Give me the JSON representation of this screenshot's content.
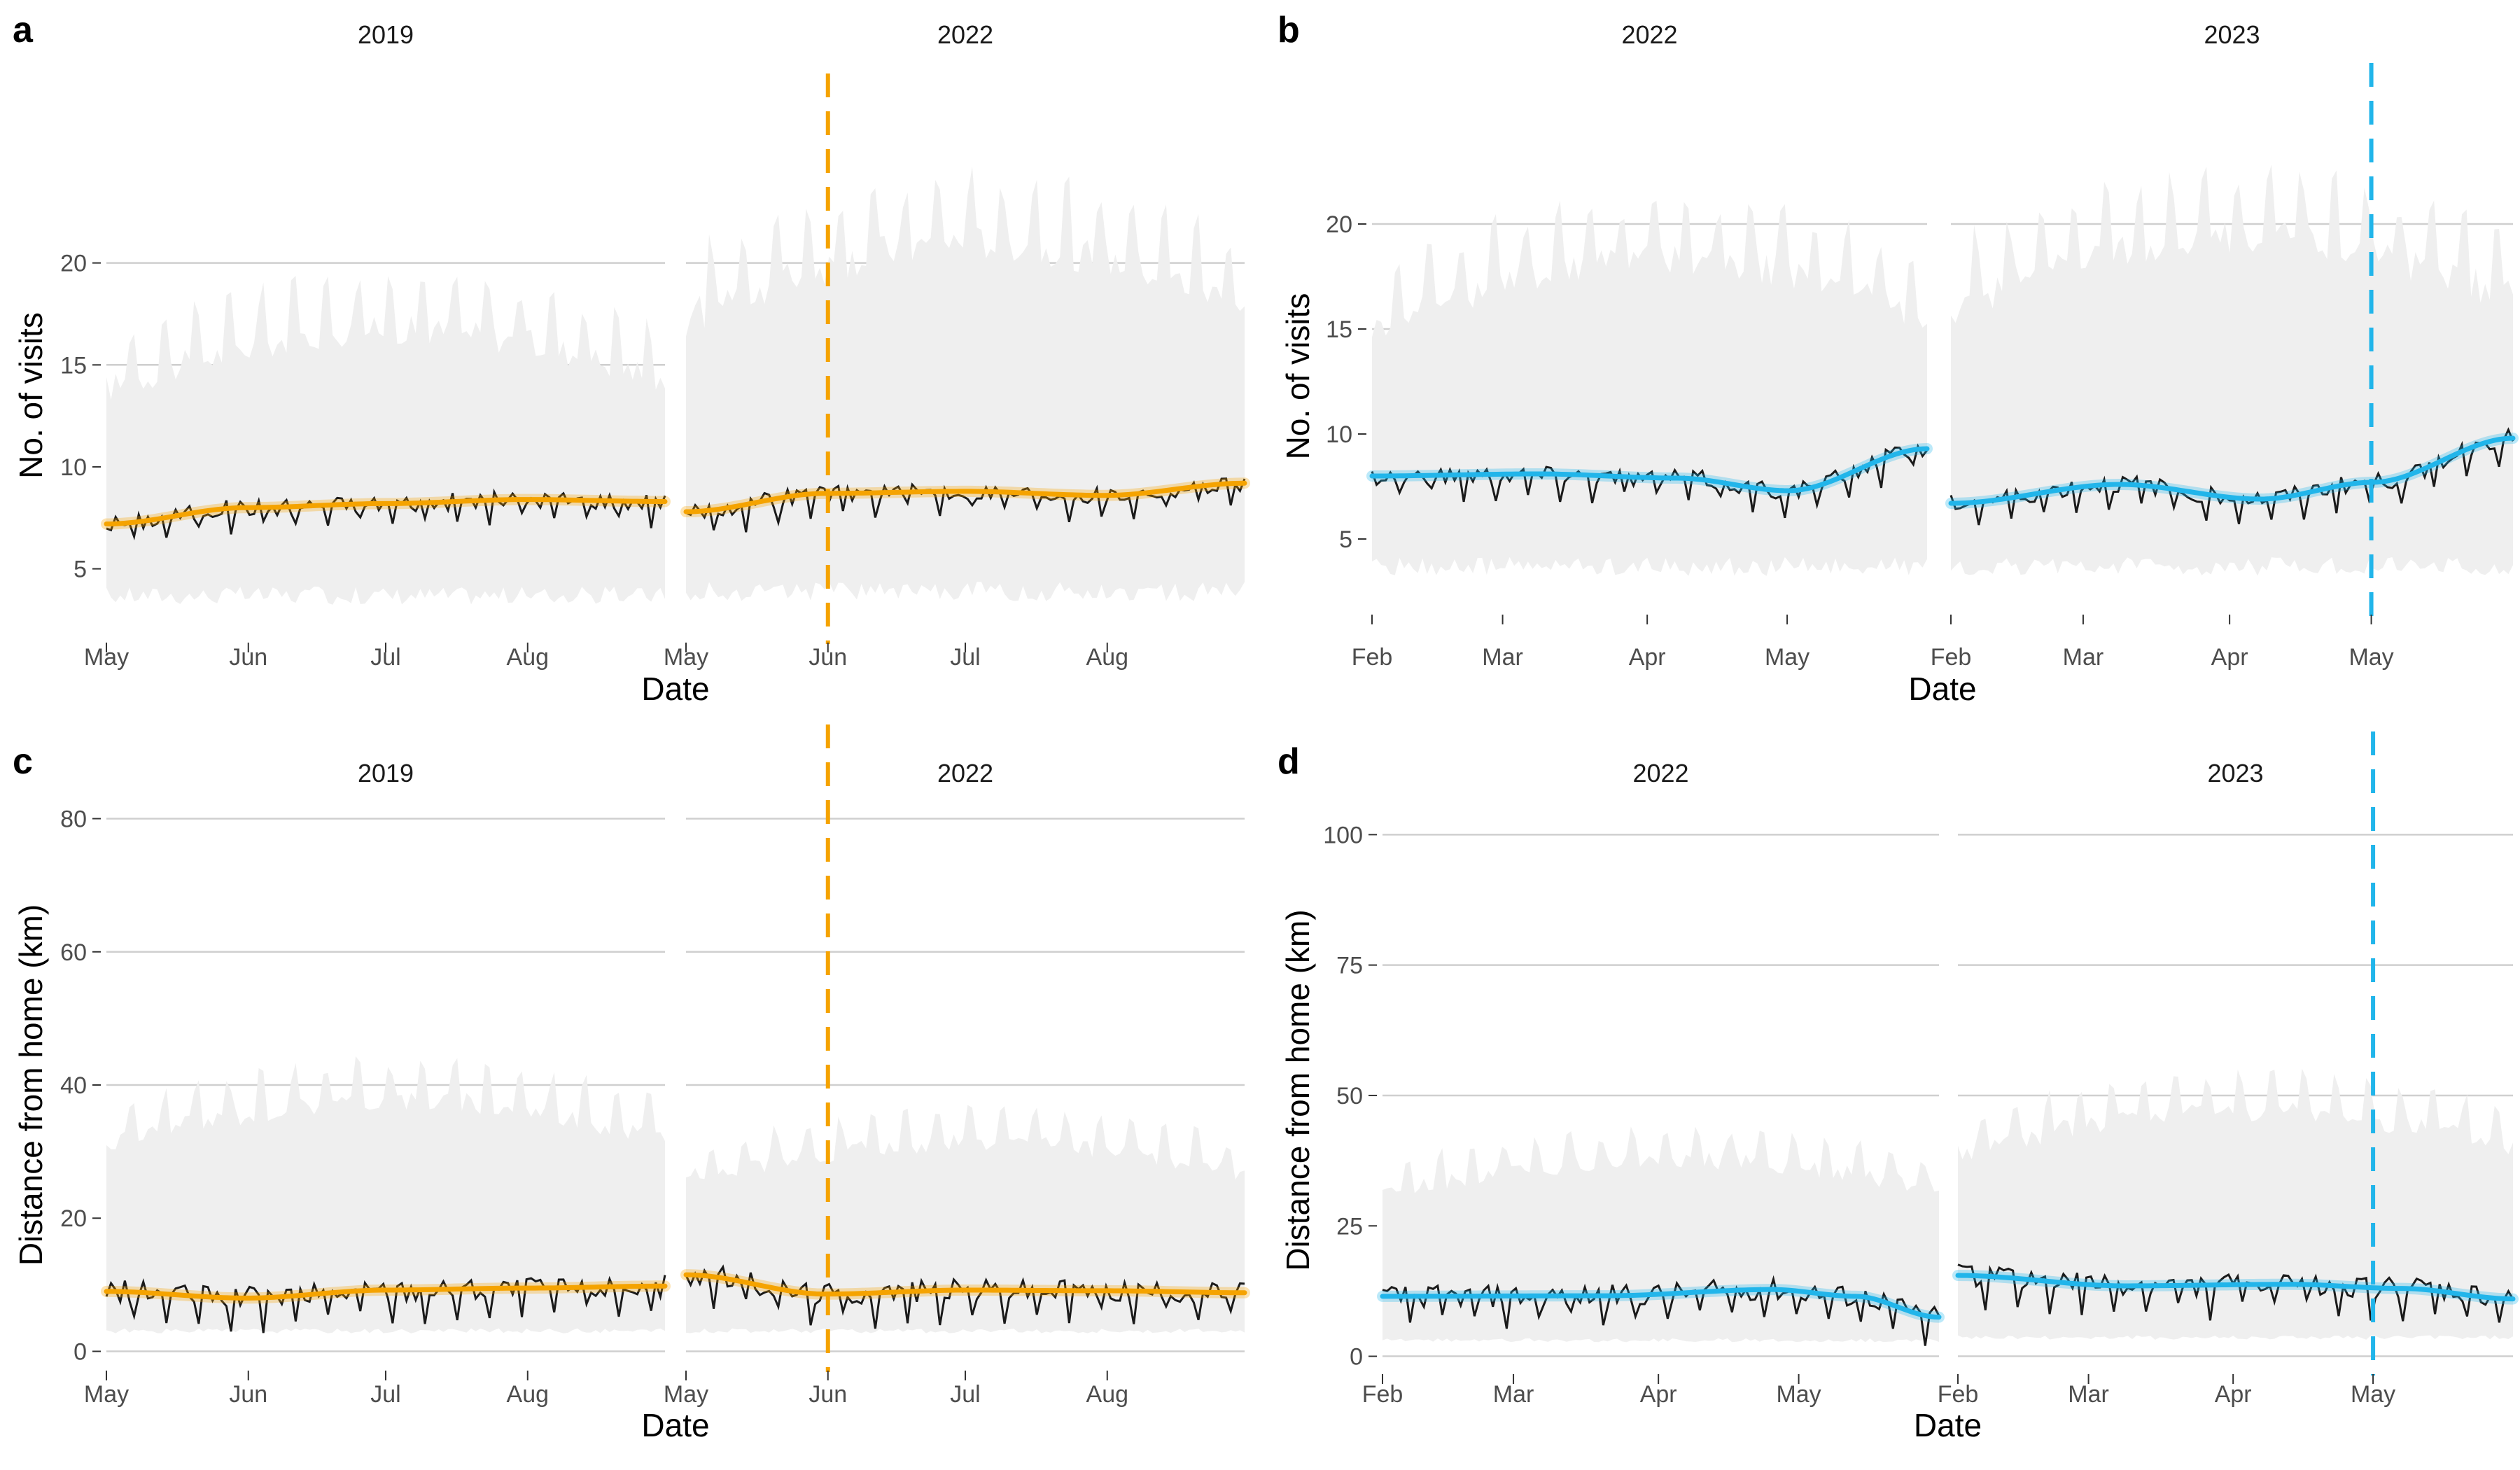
{
  "colors": {
    "fy_orange": "#f5a300",
    "fy_blue": "#21b5ea",
    "band": "#efefef",
    "grid": "#cfcfcf",
    "observed": "#1a1a1a",
    "tick_text": "#4d4d4d"
  },
  "chart_data": [
    {
      "panel": "a",
      "type": "line",
      "ylabel": "No. of visits",
      "xlabel": "Date",
      "y_ticks": [
        5,
        10,
        15,
        20
      ],
      "ylim": [
        2.0,
        25.0
      ],
      "highlight_color": "#f5a300",
      "facets": [
        {
          "strip": "2019",
          "x_start": "2019-05-01",
          "x_end": "2019-08-31",
          "x_ticks": [
            {
              "date": "2019-05-01",
              "label": "May"
            },
            {
              "date": "2019-06-01",
              "label": "Jun"
            },
            {
              "date": "2019-07-01",
              "label": "Jul"
            },
            {
              "date": "2019-08-01",
              "label": "Aug"
            }
          ],
          "vline": null,
          "smooth": [
            [
              0,
              7.2
            ],
            [
              0.25,
              8.0
            ],
            [
              0.5,
              8.2
            ],
            [
              0.75,
              8.4
            ],
            [
              1,
              8.3
            ]
          ],
          "observed_base": 8.1,
          "band_low": 3.6,
          "band_high": 16.0
        },
        {
          "strip": "2022",
          "x_start": "2022-05-01",
          "x_end": "2022-08-31",
          "x_ticks": [
            {
              "date": "2022-05-01",
              "label": "May"
            },
            {
              "date": "2022-06-01",
              "label": "Jun"
            },
            {
              "date": "2022-07-01",
              "label": "Jul"
            },
            {
              "date": "2022-08-01",
              "label": "Aug"
            }
          ],
          "vline": "2022-06-01",
          "smooth": [
            [
              0,
              7.8
            ],
            [
              0.25,
              8.7
            ],
            [
              0.5,
              8.8
            ],
            [
              0.75,
              8.6
            ],
            [
              1,
              9.2
            ]
          ],
          "observed_base": 8.6,
          "band_low": 3.8,
          "band_high": 20.0
        }
      ]
    },
    {
      "panel": "b",
      "type": "line",
      "ylabel": "No. of visits",
      "xlabel": "Date",
      "y_ticks": [
        5,
        10,
        15,
        20
      ],
      "ylim": [
        2.0,
        23.5
      ],
      "highlight_color": "#21b5ea",
      "facets": [
        {
          "strip": "2022",
          "x_start": "2022-02-01",
          "x_end": "2022-05-31",
          "x_ticks": [
            {
              "date": "2022-02-01",
              "label": "Feb"
            },
            {
              "date": "2022-03-01",
              "label": "Mar"
            },
            {
              "date": "2022-04-01",
              "label": "Apr"
            },
            {
              "date": "2022-05-01",
              "label": "May"
            }
          ],
          "vline": null,
          "smooth": [
            [
              0,
              8.0
            ],
            [
              0.3,
              8.1
            ],
            [
              0.55,
              7.9
            ],
            [
              0.75,
              7.3
            ],
            [
              1,
              9.3
            ]
          ],
          "observed_base": 7.9,
          "band_low": 3.6,
          "band_high": 17.5
        },
        {
          "strip": "2023",
          "x_start": "2023-02-01",
          "x_end": "2023-05-31",
          "x_ticks": [
            {
              "date": "2023-02-01",
              "label": "Feb"
            },
            {
              "date": "2023-03-01",
              "label": "Mar"
            },
            {
              "date": "2023-04-01",
              "label": "Apr"
            },
            {
              "date": "2023-05-01",
              "label": "May"
            }
          ],
          "vline": "2023-05-01",
          "smooth": [
            [
              0,
              6.7
            ],
            [
              0.3,
              7.6
            ],
            [
              0.55,
              6.9
            ],
            [
              0.75,
              7.7
            ],
            [
              1,
              9.8
            ]
          ],
          "observed_base": 7.4,
          "band_low": 3.6,
          "band_high": 18.5
        }
      ]
    },
    {
      "panel": "c",
      "type": "line",
      "ylabel": "Distance from home (km)",
      "xlabel": "Date",
      "y_ticks": [
        0,
        20,
        40,
        60,
        80
      ],
      "ylim": [
        -1,
        81
      ],
      "highlight_color": "#f5a300",
      "facets": [
        {
          "strip": "2019",
          "x_start": "2019-05-01",
          "x_end": "2019-08-31",
          "x_ticks": [
            {
              "date": "2019-05-01",
              "label": "May"
            },
            {
              "date": "2019-06-01",
              "label": "Jun"
            },
            {
              "date": "2019-07-01",
              "label": "Jul"
            },
            {
              "date": "2019-08-01",
              "label": "Aug"
            }
          ],
          "vline": null,
          "smooth": [
            [
              0,
              9.0
            ],
            [
              0.25,
              8.0
            ],
            [
              0.5,
              9.2
            ],
            [
              0.75,
              9.5
            ],
            [
              1,
              9.8
            ]
          ],
          "observed_base": 9.0,
          "band_low": 3.0,
          "band_high": 36.0
        },
        {
          "strip": "2022",
          "x_start": "2022-05-01",
          "x_end": "2022-08-31",
          "x_ticks": [
            {
              "date": "2022-05-01",
              "label": "May"
            },
            {
              "date": "2022-06-01",
              "label": "Jun"
            },
            {
              "date": "2022-07-01",
              "label": "Jul"
            },
            {
              "date": "2022-08-01",
              "label": "Aug"
            }
          ],
          "vline": "2022-06-01",
          "smooth": [
            [
              0,
              11.5
            ],
            [
              0.25,
              8.6
            ],
            [
              0.5,
              9.2
            ],
            [
              0.75,
              9.1
            ],
            [
              1,
              8.8
            ]
          ],
          "observed_base": 9.0,
          "band_low": 3.0,
          "band_high": 30.0
        }
      ]
    },
    {
      "panel": "d",
      "type": "line",
      "ylabel": "Distance from home (km)",
      "xlabel": "Date",
      "y_ticks": [
        0,
        25,
        50,
        75,
        100
      ],
      "ylim": [
        -1,
        103
      ],
      "highlight_color": "#21b5ea",
      "facets": [
        {
          "strip": "2022",
          "x_start": "2022-02-01",
          "x_end": "2022-05-31",
          "x_ticks": [
            {
              "date": "2022-02-01",
              "label": "Feb"
            },
            {
              "date": "2022-03-01",
              "label": "Mar"
            },
            {
              "date": "2022-04-01",
              "label": "Apr"
            },
            {
              "date": "2022-05-01",
              "label": "May"
            }
          ],
          "vline": null,
          "smooth": [
            [
              0,
              11.5
            ],
            [
              0.4,
              11.6
            ],
            [
              0.7,
              12.8
            ],
            [
              0.85,
              11.5
            ],
            [
              1,
              7.5
            ]
          ],
          "observed_base": 11.5,
          "band_low": 3.0,
          "band_high": 36.0
        },
        {
          "strip": "2023",
          "x_start": "2023-02-01",
          "x_end": "2023-05-31",
          "x_ticks": [
            {
              "date": "2023-02-01",
              "label": "Feb"
            },
            {
              "date": "2023-03-01",
              "label": "Mar"
            },
            {
              "date": "2023-04-01",
              "label": "Apr"
            },
            {
              "date": "2023-05-01",
              "label": "May"
            }
          ],
          "vline": "2023-05-01",
          "smooth": [
            [
              0,
              15.5
            ],
            [
              0.3,
              13.5
            ],
            [
              0.6,
              13.8
            ],
            [
              0.8,
              13.0
            ],
            [
              1,
              11.0
            ]
          ],
          "observed_base": 13.5,
          "band_low": 3.5,
          "band_high": 45.0
        }
      ]
    }
  ]
}
